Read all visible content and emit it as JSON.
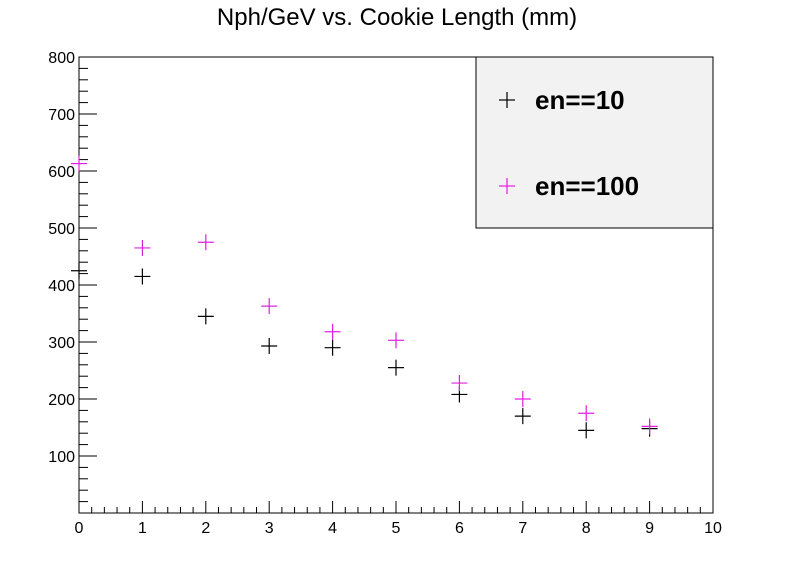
{
  "chart_data": {
    "type": "scatter",
    "title": "Nph/GeV vs. Cookie Length (mm)",
    "xlabel": "",
    "ylabel": "",
    "xlim": [
      0,
      10
    ],
    "ylim": [
      0,
      800
    ],
    "x_ticks": [
      0,
      1,
      2,
      3,
      4,
      5,
      6,
      7,
      8,
      9,
      10
    ],
    "y_ticks": [
      100,
      200,
      300,
      400,
      500,
      600,
      700,
      800
    ],
    "grid": false,
    "legend_position": "top-right",
    "series": [
      {
        "name": "en==10",
        "color": "#000000",
        "marker": "plus",
        "x": [
          0,
          1,
          2,
          3,
          4,
          5,
          6,
          7,
          8,
          9
        ],
        "y": [
          425,
          415,
          345,
          293,
          290,
          255,
          208,
          170,
          145,
          148
        ]
      },
      {
        "name": "en==100",
        "color": "#e020e0",
        "marker": "plus",
        "x": [
          0,
          1,
          2,
          3,
          4,
          5,
          6,
          7,
          8,
          9
        ],
        "y": [
          613,
          465,
          475,
          363,
          318,
          303,
          228,
          200,
          175,
          152
        ]
      }
    ]
  }
}
